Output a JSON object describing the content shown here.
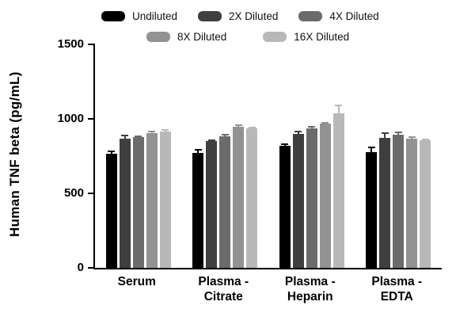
{
  "chart_data": {
    "type": "bar",
    "title": "",
    "ylabel": "Human TNF beta (pg/mL)",
    "xlabel": "",
    "ylim": [
      0,
      1500
    ],
    "yticks": [
      0,
      500,
      1000,
      1500
    ],
    "grid": false,
    "legend_position": "top",
    "categories": [
      "Serum",
      "Plasma -\nCitrate",
      "Plasma -\nHeparin",
      "Plasma -\nEDTA"
    ],
    "series": [
      {
        "name": "Undiluted",
        "color": "#000000",
        "values": [
          766,
          771,
          819,
          777
        ],
        "errors": [
          20,
          25,
          15,
          35
        ]
      },
      {
        "name": "2X Diluted",
        "color": "#3f3f3f",
        "values": [
          867,
          851,
          899,
          872
        ],
        "errors": [
          25,
          10,
          20,
          40
        ]
      },
      {
        "name": "4X Diluted",
        "color": "#6b6b6b",
        "values": [
          877,
          883,
          936,
          894
        ],
        "errors": [
          10,
          15,
          15,
          20
        ]
      },
      {
        "name": "8X Diluted",
        "color": "#929292",
        "values": [
          904,
          947,
          968,
          867
        ],
        "errors": [
          15,
          15,
          10,
          15
        ]
      },
      {
        "name": "16X Diluted",
        "color": "#b8b8b8",
        "values": [
          915,
          936,
          1037,
          856
        ],
        "errors": [
          15,
          10,
          60,
          10
        ]
      }
    ],
    "legend_rows": [
      [
        "Undiluted",
        "2X Diluted",
        "4X Diluted"
      ],
      [
        "8X Diluted",
        "16X Diluted"
      ]
    ],
    "axis_color": "#000000"
  }
}
